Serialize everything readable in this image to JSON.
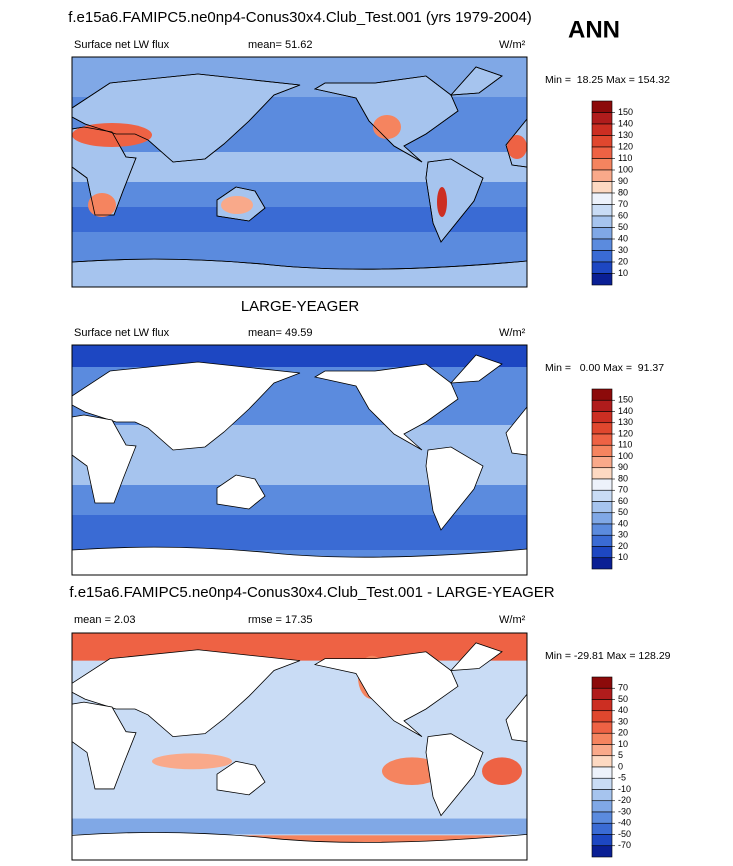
{
  "season": "ANN",
  "panels": [
    {
      "title": "f.e15a6.FAMIPC5.ne0np4-Conus30x4.Club_Test.001 (yrs 1979-2004)",
      "variable": "Surface net LW flux",
      "mean": "mean=  51.62",
      "units": "W/m²",
      "range": "Min =  18.25 Max = 154.32",
      "colorbar": {
        "levels": [
          150,
          140,
          130,
          120,
          110,
          100,
          90,
          80,
          70,
          60,
          50,
          40,
          30,
          20,
          10
        ],
        "colors": [
          "#8c0a0a",
          "#b01c1c",
          "#cc2e22",
          "#e0472e",
          "#ee6244",
          "#f5845f",
          "#f9a98a",
          "#fdd9c2",
          "#edf2fb",
          "#c9dcf5",
          "#a6c4ee",
          "#80a8e6",
          "#5b8bde",
          "#3a6bd4",
          "#1d47c2",
          "#0a1f94"
        ]
      }
    },
    {
      "title": "LARGE-YEAGER",
      "variable": "Surface net LW flux",
      "mean": "mean=  49.59",
      "units": "W/m²",
      "range": "Min =   0.00 Max =  91.37",
      "colorbar": {
        "levels": [
          150,
          140,
          130,
          120,
          110,
          100,
          90,
          80,
          70,
          60,
          50,
          40,
          30,
          20,
          10
        ],
        "colors": [
          "#8c0a0a",
          "#b01c1c",
          "#cc2e22",
          "#e0472e",
          "#ee6244",
          "#f5845f",
          "#f9a98a",
          "#fdd9c2",
          "#edf2fb",
          "#c9dcf5",
          "#a6c4ee",
          "#80a8e6",
          "#5b8bde",
          "#3a6bd4",
          "#1d47c2",
          "#0a1f94"
        ]
      }
    },
    {
      "title": "f.e15a6.FAMIPC5.ne0np4-Conus30x4.Club_Test.001 - LARGE-YEAGER",
      "mean": "mean =   2.03",
      "rmse": "rmse =  17.35",
      "units": "W/m²",
      "range": "Min = -29.81 Max = 128.29",
      "colorbar": {
        "levels": [
          70,
          50,
          40,
          30,
          20,
          10,
          5,
          0,
          -5,
          -10,
          -20,
          -30,
          -40,
          -50,
          -70
        ],
        "colors": [
          "#8c0a0a",
          "#b01c1c",
          "#cc2e22",
          "#e0472e",
          "#ee6244",
          "#f5845f",
          "#f9a98a",
          "#fdd9c2",
          "#edf2fb",
          "#c9dcf5",
          "#a6c4ee",
          "#80a8e6",
          "#5b8bde",
          "#3a6bd4",
          "#1d47c2",
          "#0a1f94"
        ]
      }
    }
  ]
}
